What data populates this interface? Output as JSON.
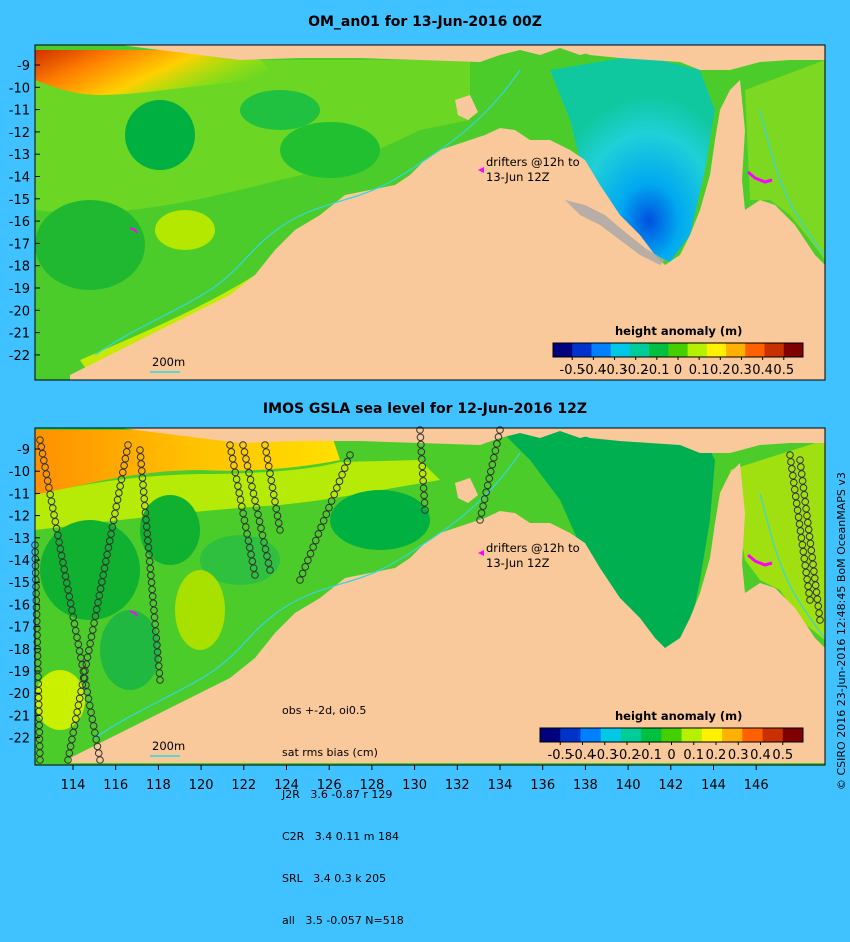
{
  "panels": [
    {
      "title": "OM_an01 for 13-Jun-2016 00Z",
      "drifter_note_lines": [
        "drifters @12h to",
        "13-Jun 12Z"
      ],
      "depth_contour_label": "200m",
      "colorbar_title": "height anomaly (m)"
    },
    {
      "title": "IMOS GSLA sea level  for 12-Jun-2016 12Z",
      "drifter_note_lines": [
        "drifters @12h to",
        "13-Jun 12Z"
      ],
      "depth_contour_label": "200m",
      "colorbar_title": "height anomaly (m)",
      "stats_lines": [
        "obs +-2d, oi0.5",
        "sat rms bias (cm)",
        "J2R   3.6 -0.87 r 129",
        "C2R   3.4 0.11 m 184",
        "SRL   3.4 0.3 k 205",
        "all   3.5 -0.057 N=518"
      ]
    }
  ],
  "colorbar_ticks": [
    "-0.5",
    "-0.4",
    "-0.3",
    "-0.2",
    "-0.1",
    "0",
    "0.1",
    "0.2",
    "0.3",
    "0.4",
    "0.5"
  ],
  "colorbar_colors": [
    "#00007f",
    "#0033cc",
    "#0080ff",
    "#00c8e6",
    "#00cc99",
    "#00c040",
    "#44d000",
    "#b4f000",
    "#fff000",
    "#ffb000",
    "#ff6000",
    "#c83000",
    "#7f0000"
  ],
  "latitude_labels": [
    "-9",
    "-10",
    "-11",
    "-12",
    "-13",
    "-14",
    "-15",
    "-16",
    "-17",
    "-18",
    "-19",
    "-20",
    "-21",
    "-22"
  ],
  "longitude_labels": [
    "114",
    "116",
    "118",
    "120",
    "122",
    "124",
    "126",
    "128",
    "130",
    "132",
    "134",
    "136",
    "138",
    "140",
    "142",
    "144",
    "146"
  ],
  "credit": "© CSIRO  2016  23-Jun-2016 12:48:45 BoM OceanMAPS v3",
  "colors": {
    "background": "#3fc2ff",
    "land": "#f9c99b",
    "island": "#e8b890",
    "ocean_green": "#4ccc2a",
    "drifter": "#ff00ff",
    "contour": "#33d6e0"
  }
}
